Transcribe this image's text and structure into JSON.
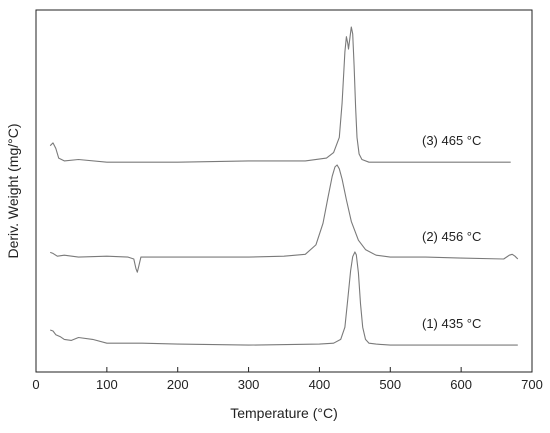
{
  "chart_data": {
    "type": "line",
    "title": "",
    "xlabel": "Temperature (°C)",
    "ylabel": "Deriv. Weight (mg/°C)",
    "xlim": [
      0,
      700
    ],
    "xticks": [
      0,
      100,
      200,
      300,
      400,
      500,
      600,
      700
    ],
    "y_ticks_shown": false,
    "grid": false,
    "legend": "none",
    "line_color": "#7a7a7a",
    "series": [
      {
        "name": "(3) 465 °C",
        "x": [
          20,
          24,
          28,
          32,
          40,
          60,
          100,
          200,
          300,
          380,
          410,
          420,
          428,
          432,
          436,
          438,
          440,
          441,
          443,
          445,
          447,
          449,
          451,
          453,
          456,
          460,
          470,
          500,
          600,
          670
        ],
        "y": [
          0.14,
          0.16,
          0.12,
          0.05,
          0.03,
          0.04,
          0.02,
          0.02,
          0.03,
          0.03,
          0.05,
          0.09,
          0.2,
          0.45,
          0.82,
          0.93,
          0.88,
          0.84,
          0.92,
          1.0,
          0.95,
          0.72,
          0.42,
          0.2,
          0.08,
          0.04,
          0.02,
          0.02,
          0.02,
          0.02
        ]
      },
      {
        "name": "(2) 456 °C",
        "x": [
          20,
          24,
          30,
          40,
          60,
          100,
          130,
          138,
          141,
          143,
          145,
          148,
          155,
          200,
          300,
          350,
          380,
          395,
          405,
          412,
          418,
          422,
          425,
          428,
          432,
          438,
          445,
          455,
          465,
          480,
          500,
          550,
          600,
          660,
          668,
          672,
          676,
          680
        ],
        "y": [
          0.07,
          0.06,
          0.03,
          0.04,
          0.02,
          0.03,
          0.02,
          0.0,
          -0.1,
          -0.14,
          -0.08,
          0.02,
          0.02,
          0.02,
          0.02,
          0.03,
          0.05,
          0.15,
          0.38,
          0.65,
          0.88,
          0.98,
          1.0,
          0.96,
          0.85,
          0.63,
          0.4,
          0.2,
          0.1,
          0.04,
          0.02,
          0.02,
          0.01,
          0.0,
          0.04,
          0.05,
          0.03,
          0.0
        ]
      },
      {
        "name": "(1) 435 °C",
        "x": [
          20,
          24,
          28,
          34,
          40,
          50,
          60,
          80,
          100,
          150,
          200,
          300,
          400,
          420,
          430,
          436,
          440,
          444,
          447,
          450,
          452,
          455,
          458,
          461,
          465,
          470,
          480,
          500,
          600,
          680
        ],
        "y": [
          0.17,
          0.16,
          0.12,
          0.1,
          0.07,
          0.06,
          0.09,
          0.07,
          0.03,
          0.03,
          0.02,
          0.01,
          0.02,
          0.03,
          0.07,
          0.2,
          0.5,
          0.8,
          0.95,
          1.0,
          0.97,
          0.78,
          0.45,
          0.2,
          0.07,
          0.03,
          0.02,
          0.01,
          0.01,
          0.01
        ]
      }
    ]
  }
}
